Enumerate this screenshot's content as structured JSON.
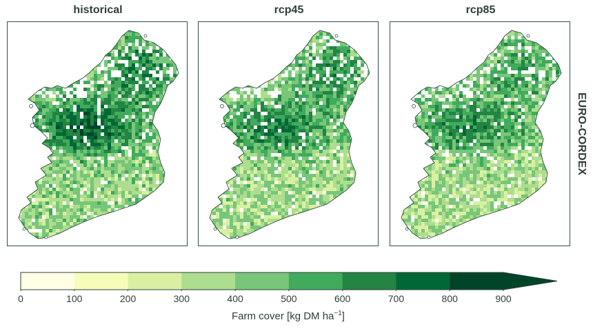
{
  "panels": [
    {
      "title": "historical",
      "intensity": 1.0
    },
    {
      "title": "rcp45",
      "intensity": 0.72
    },
    {
      "title": "rcp85",
      "intensity": 0.6
    }
  ],
  "row_label": "EURO-CORDEX",
  "colorbar": {
    "ticks": [
      "0",
      "100",
      "200",
      "300",
      "400",
      "500",
      "600",
      "700",
      "800",
      "900"
    ],
    "colors": [
      "#ffffe5",
      "#f7fcb9",
      "#d9f0a3",
      "#addd8e",
      "#78c679",
      "#41ab5d",
      "#238443",
      "#006837",
      "#004529"
    ],
    "extend_color": "#004529",
    "label_prefix": "Farm cover [kg DM ha",
    "label_sup": "−1",
    "label_suffix": "]"
  },
  "colors": {
    "frame": "#2f4f4a",
    "coast": "#1f3d33"
  }
}
